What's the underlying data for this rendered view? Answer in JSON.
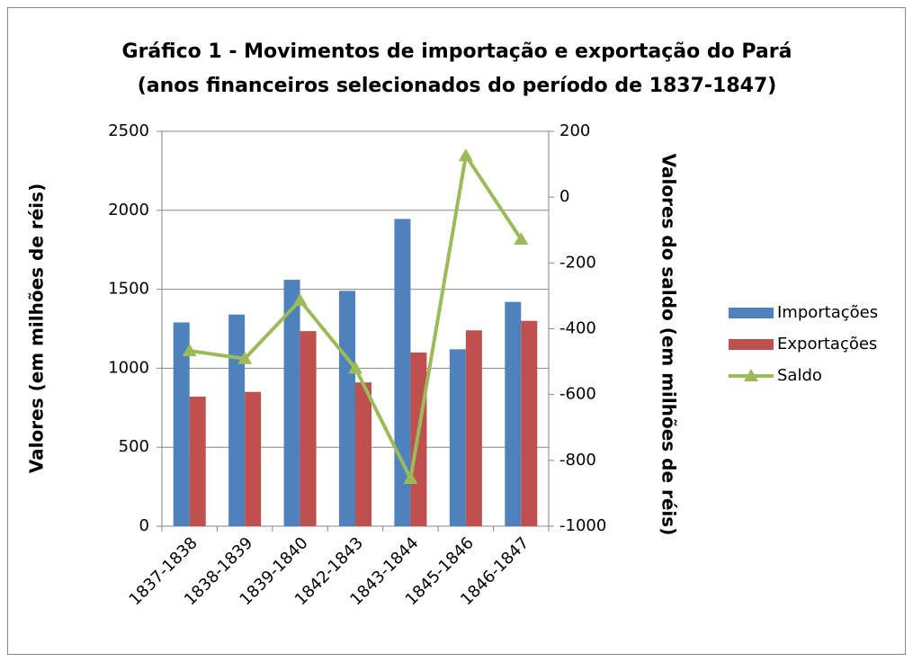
{
  "chart_data": {
    "type": "bar",
    "title": "Gráfico 1 - Movimentos de importação e exportação do Pará",
    "subtitle": "(anos financeiros selecionados do período de 1837-1847)",
    "y_label": "Valores (em milhões de réis)",
    "y2_label": "Valores do saldo (em milhões de réis)",
    "categories": [
      "1837-1838",
      "1838-1839",
      "1839-1840",
      "1842-1843",
      "1843-1844",
      "1845-1846",
      "1846-1847"
    ],
    "series": [
      {
        "name": "Importações",
        "type": "bar",
        "color": "#4f81bd",
        "values": [
          1290,
          1340,
          1560,
          1490,
          1945,
          1120,
          1420
        ]
      },
      {
        "name": "Exportações",
        "type": "bar",
        "color": "#c0504d",
        "values": [
          820,
          850,
          1235,
          910,
          1100,
          1240,
          1300
        ]
      },
      {
        "name": "Saldo",
        "type": "line",
        "axis": "y2",
        "color": "#9bbb59",
        "values": [
          -467,
          -491,
          -314,
          -520,
          -855,
          126,
          -128
        ]
      }
    ],
    "ylim": [
      0,
      2500
    ],
    "yticks": [
      0,
      500,
      1000,
      1500,
      2000,
      2500
    ],
    "y2lim": [
      -1000,
      200
    ],
    "y2ticks": [
      -1000,
      -800,
      -600,
      -400,
      -200,
      0,
      200
    ],
    "grid": true,
    "legend": "right"
  }
}
